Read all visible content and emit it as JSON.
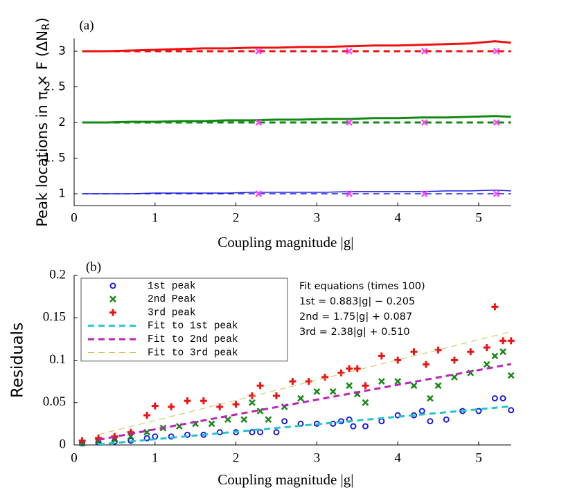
{
  "chart_data": [
    {
      "type": "line",
      "label": "(a)",
      "xlabel": "Coupling magnitude |g|",
      "ylabel": [
        "Peak locations in π × F (ΔN",
        "R",
        ")"
      ],
      "xlim": [
        0,
        5.4
      ],
      "ylim": [
        0.83,
        3.18
      ],
      "xticks": [
        0,
        1,
        2,
        3,
        4,
        5
      ],
      "yticks": [
        1,
        {
          "value": 1.5,
          "label": "1. 5"
        },
        2,
        {
          "value": 2.5,
          "label": "2. 5"
        },
        3
      ],
      "series": [
        {
          "color": "#ee1111",
          "style": "solid",
          "width": 3,
          "x": [
            0.1,
            0.4,
            0.7,
            1.0,
            1.3,
            1.6,
            1.9,
            2.2,
            2.5,
            2.8,
            3.1,
            3.4,
            3.7,
            4.0,
            4.3,
            4.6,
            4.9,
            5.2,
            5.4
          ],
          "values": [
            3.0,
            3.0,
            3.01,
            3.02,
            3.03,
            3.04,
            3.04,
            3.05,
            3.05,
            3.06,
            3.06,
            3.07,
            3.08,
            3.08,
            3.09,
            3.1,
            3.11,
            3.14,
            3.12
          ]
        },
        {
          "color": "#ee1111",
          "style": "dashed",
          "width": 3,
          "x": [
            0.1,
            5.4
          ],
          "values": [
            3,
            3
          ]
        },
        {
          "color": "#118811",
          "style": "solid",
          "width": 3,
          "x": [
            0.1,
            0.4,
            0.7,
            1.0,
            1.3,
            1.6,
            1.9,
            2.2,
            2.5,
            2.8,
            3.1,
            3.4,
            3.7,
            4.0,
            4.3,
            4.6,
            4.9,
            5.2,
            5.4
          ],
          "values": [
            2.0,
            2.0,
            2.01,
            2.01,
            2.02,
            2.02,
            2.03,
            2.03,
            2.04,
            2.04,
            2.05,
            2.05,
            2.06,
            2.06,
            2.07,
            2.07,
            2.08,
            2.09,
            2.08
          ]
        },
        {
          "color": "#118811",
          "style": "dashed",
          "width": 3,
          "x": [
            0.1,
            5.4
          ],
          "values": [
            2,
            2
          ]
        },
        {
          "color": "#1a1adf",
          "style": "solid",
          "width": 1.5,
          "x": [
            0.1,
            0.4,
            0.7,
            1.0,
            1.3,
            1.6,
            1.9,
            2.2,
            2.5,
            2.8,
            3.1,
            3.4,
            3.7,
            4.0,
            4.3,
            4.6,
            4.9,
            5.2,
            5.4
          ],
          "values": [
            1.0,
            1.0,
            1.0,
            1.01,
            1.01,
            1.01,
            1.01,
            1.02,
            1.02,
            1.02,
            1.02,
            1.03,
            1.03,
            1.03,
            1.03,
            1.04,
            1.04,
            1.05,
            1.04
          ]
        },
        {
          "color": "#1a1adf",
          "style": "dashed",
          "width": 1.5,
          "x": [
            0.1,
            5.4
          ],
          "values": [
            1,
            1
          ]
        },
        {
          "color": "#ff44ff",
          "marker": "x",
          "x": [
            2.28,
            3.4,
            4.33,
            5.22,
            2.28,
            3.4,
            4.33,
            5.22,
            2.28,
            3.4,
            4.33,
            5.22
          ],
          "values": [
            3,
            3,
            3,
            3,
            2,
            2,
            2,
            2,
            1,
            1,
            1,
            1
          ]
        }
      ]
    },
    {
      "type": "scatter",
      "label": "(b)",
      "xlabel": "Coupling magnitude |g|",
      "ylabel": "Residuals",
      "xlim": [
        0,
        5.4
      ],
      "ylim": [
        0,
        0.2
      ],
      "xticks": [
        0,
        1,
        2,
        3,
        4,
        5
      ],
      "yticks": [
        0,
        0.05,
        0.1,
        0.15,
        0.2
      ],
      "annotation": [
        "Fit equations (times 100)",
        "1st = 0.883|g| − 0.205",
        "2nd = 1.75|g| + 0.087",
        "3rd = 2.38|g| + 0.510"
      ],
      "series": [
        {
          "name": "1st peak",
          "color": "#1a1adf",
          "marker": "o",
          "x": [
            0.1,
            0.3,
            0.5,
            0.7,
            0.9,
            1.0,
            1.2,
            1.4,
            1.6,
            1.8,
            2.0,
            2.2,
            2.3,
            2.5,
            2.6,
            2.8,
            3.0,
            3.2,
            3.3,
            3.4,
            3.45,
            3.6,
            3.8,
            4.0,
            4.2,
            4.3,
            4.4,
            4.6,
            4.8,
            5.0,
            5.2,
            5.3,
            5.4
          ],
          "values": [
            0.002,
            0.003,
            0.004,
            0.005,
            0.008,
            0.01,
            0.01,
            0.012,
            0.012,
            0.015,
            0.015,
            0.015,
            0.015,
            0.015,
            0.028,
            0.025,
            0.025,
            0.025,
            0.028,
            0.03,
            0.022,
            0.022,
            0.028,
            0.035,
            0.035,
            0.04,
            0.028,
            0.03,
            0.04,
            0.04,
            0.055,
            0.055,
            0.041
          ]
        },
        {
          "name": "2nd Peak",
          "color": "#118811",
          "marker": "x",
          "x": [
            0.1,
            0.3,
            0.5,
            0.7,
            0.9,
            1.1,
            1.3,
            1.5,
            1.7,
            1.9,
            2.1,
            2.2,
            2.3,
            2.4,
            2.6,
            2.8,
            3.0,
            3.2,
            3.4,
            3.5,
            3.6,
            3.8,
            4.0,
            4.2,
            4.4,
            4.5,
            4.7,
            4.9,
            5.1,
            5.2,
            5.3,
            5.4
          ],
          "values": [
            0.002,
            0.004,
            0.006,
            0.01,
            0.015,
            0.02,
            0.022,
            0.025,
            0.025,
            0.03,
            0.03,
            0.05,
            0.04,
            0.03,
            0.045,
            0.055,
            0.063,
            0.063,
            0.07,
            0.06,
            0.05,
            0.075,
            0.075,
            0.07,
            0.055,
            0.07,
            0.08,
            0.085,
            0.095,
            0.105,
            0.11,
            0.082
          ]
        },
        {
          "name": "3rd peak",
          "color": "#ee1111",
          "marker": "+",
          "x": [
            0.1,
            0.3,
            0.5,
            0.7,
            0.9,
            1.0,
            1.2,
            1.4,
            1.6,
            1.8,
            2.0,
            2.2,
            2.3,
            2.5,
            2.7,
            2.9,
            3.1,
            3.3,
            3.4,
            3.5,
            3.6,
            3.8,
            4.0,
            4.2,
            4.35,
            4.5,
            4.7,
            4.9,
            5.1,
            5.2,
            5.3,
            5.4
          ],
          "values": [
            0.005,
            0.008,
            0.01,
            0.015,
            0.035,
            0.046,
            0.045,
            0.052,
            0.052,
            0.045,
            0.048,
            0.058,
            0.07,
            0.058,
            0.075,
            0.075,
            0.08,
            0.085,
            0.09,
            0.09,
            0.07,
            0.105,
            0.1,
            0.11,
            0.095,
            0.112,
            0.1,
            0.11,
            0.115,
            0.163,
            0.123,
            0.123
          ]
        },
        {
          "name": "Fit to 1st peak",
          "color": "#22c4cc",
          "style": "dashed",
          "width": 3,
          "x": [
            0.3,
            5.4
          ],
          "values": [
            0.0006,
            0.0456
          ]
        },
        {
          "name": "Fit to 2nd peak",
          "color": "#bb22bb",
          "style": "dashed",
          "width": 3,
          "x": [
            0.3,
            5.4
          ],
          "values": [
            0.0061,
            0.0954
          ]
        },
        {
          "name": "Fit to 3rd peak",
          "color": "#c8c050",
          "style": "dashed",
          "width": 1,
          "x": [
            0.3,
            5.4
          ],
          "values": [
            0.0122,
            0.1336
          ]
        }
      ]
    }
  ]
}
